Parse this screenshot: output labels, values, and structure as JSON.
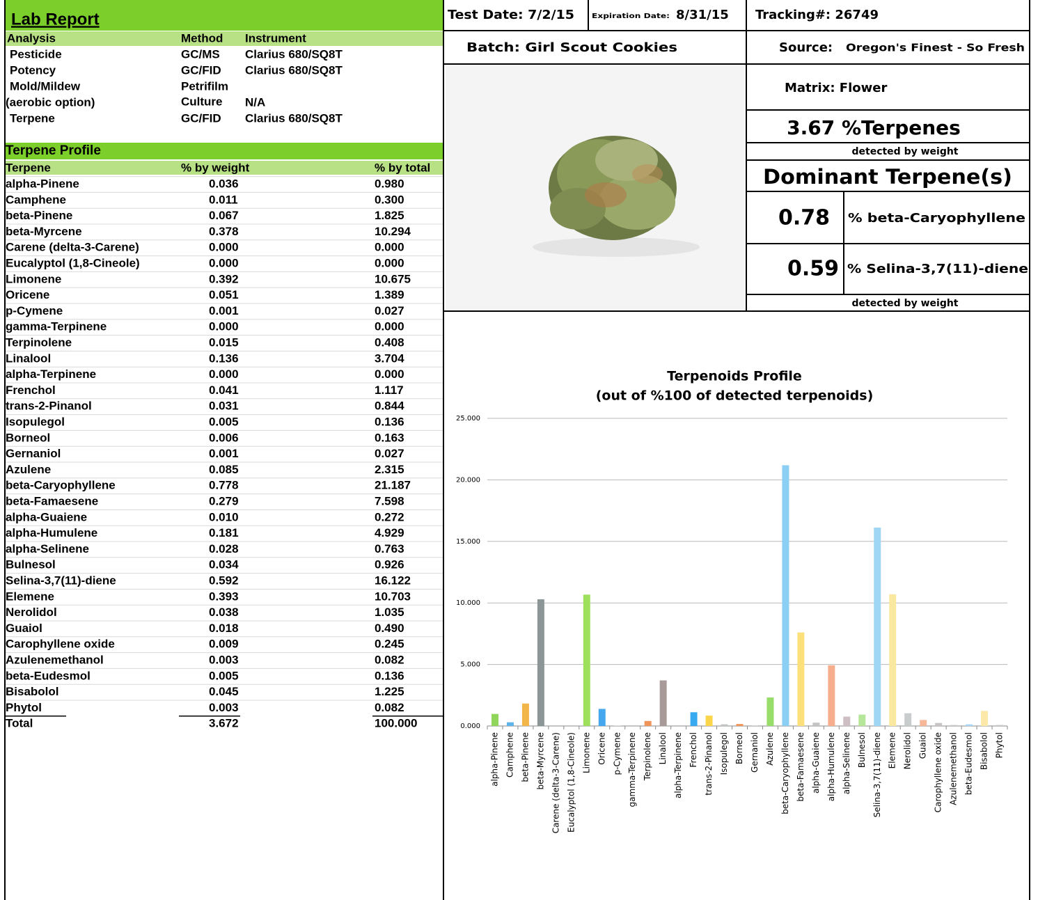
{
  "report": {
    "title": "Lab Report",
    "analysis": {
      "header": [
        "Analysis",
        "Method",
        "Instrument"
      ],
      "pesticide": [
        "Pesticide",
        "GC/MS",
        "Clarius 680/SQ8T"
      ],
      "potency": [
        "Potency",
        "GC/FID",
        "Clarius 680/SQ8T"
      ],
      "mold": {
        "name": [
          "Mold/Mildew",
          "(aerobic option)"
        ],
        "method": [
          "Petrifilm",
          "Culture"
        ],
        "instrument": "N/A"
      },
      "terpene": [
        "Terpene",
        "GC/FID",
        "Clarius 680/SQ8T"
      ]
    },
    "profile": {
      "title": "Terpene Profile",
      "header": [
        "Terpene",
        "% by weight",
        "% by total"
      ],
      "rows": [
        [
          "alpha-Pinene",
          "0.036",
          "0.980"
        ],
        [
          "Camphene",
          "0.011",
          "0.300"
        ],
        [
          "beta-Pinene",
          "0.067",
          "1.825"
        ],
        [
          "beta-Myrcene",
          "0.378",
          "10.294"
        ],
        [
          "Carene (delta-3-Carene)",
          "0.000",
          "0.000"
        ],
        [
          "Eucalyptol (1,8-Cineole)",
          "0.000",
          "0.000"
        ],
        [
          "Limonene",
          "0.392",
          "10.675"
        ],
        [
          "Oricene",
          "0.051",
          "1.389"
        ],
        [
          "p-Cymene",
          "0.001",
          "0.027"
        ],
        [
          "gamma-Terpinene",
          "0.000",
          "0.000"
        ],
        [
          "Terpinolene",
          "0.015",
          "0.408"
        ],
        [
          "Linalool",
          "0.136",
          "3.704"
        ],
        [
          "alpha-Terpinene",
          "0.000",
          "0.000"
        ],
        [
          "Frenchol",
          "0.041",
          "1.117"
        ],
        [
          "trans-2-Pinanol",
          "0.031",
          "0.844"
        ],
        [
          "Isopulegol",
          "0.005",
          "0.136"
        ],
        [
          "Borneol",
          "0.006",
          "0.163"
        ],
        [
          "Gernaniol",
          "0.001",
          "0.027"
        ],
        [
          "Azulene",
          "0.085",
          "2.315"
        ],
        [
          "beta-Caryophyllene",
          "0.778",
          "21.187"
        ],
        [
          "beta-Famaesene",
          "0.279",
          "7.598"
        ],
        [
          "alpha-Guaiene",
          "0.010",
          "0.272"
        ],
        [
          "alpha-Humulene",
          "0.181",
          "4.929"
        ],
        [
          "alpha-Selinene",
          "0.028",
          "0.763"
        ],
        [
          "Bulnesol",
          "0.034",
          "0.926"
        ],
        [
          "Selina-3,7(11)-diene",
          "0.592",
          "16.122"
        ],
        [
          "Elemene",
          "0.393",
          "10.703"
        ],
        [
          "Nerolidol",
          "0.038",
          "1.035"
        ],
        [
          "Guaiol",
          "0.018",
          "0.490"
        ],
        [
          "Carophyllene oxide",
          "0.009",
          "0.245"
        ],
        [
          "Azulenemethanol",
          "0.003",
          "0.082"
        ],
        [
          "beta-Eudesmol",
          "0.005",
          "0.136"
        ],
        [
          "Bisabolol",
          "0.045",
          "1.225"
        ],
        [
          "Phytol",
          "0.003",
          "0.082"
        ]
      ],
      "total": [
        "Total",
        "3.672",
        "100.000"
      ]
    },
    "info": {
      "test_date": "Test Date: 7/2/15",
      "expiration_label": "Expiration Date:",
      "expiration_date": "8/31/15",
      "tracking": "Tracking#: 26749",
      "batch": "Batch: Girl Scout Cookies",
      "source_label": "Source:",
      "source": "Oregon's Finest - So Fresh",
      "matrix": "Matrix: Flower",
      "terpenes_total": "3.67 %Terpenes",
      "detected_note": "detected by weight",
      "dominant_title": "Dominant Terpene(s)",
      "dominant": [
        {
          "value": "0.78",
          "name": "% beta-Caryophyllene"
        },
        {
          "value": "0.59",
          "name": "% Selina-3,7(11)-diene"
        }
      ],
      "detected_note_2": "detected by weight"
    }
  },
  "chart_data": {
    "type": "bar",
    "title": [
      "Terpenoids Profile",
      "(out of %100 of detected terpenoids)"
    ],
    "categories": [
      "alpha-Pinene",
      "Camphene",
      "beta-Pinene",
      "beta-Myrcene",
      "Carene (delta-3-Carene)",
      "Eucalyptol (1,8-Cineole)",
      "Limonene",
      "Oricene",
      "p-Cymene",
      "gamma-Terpinene",
      "Terpinolene",
      "Linalool",
      "alpha-Terpinene",
      "Frenchol",
      "trans-2-Pinanol",
      "Isopulegol",
      "Borneol",
      "Gernaniol",
      "Azulene",
      "beta-Caryophyllene",
      "beta-Famaesene",
      "alpha-Guaiene",
      "alpha-Humulene",
      "alpha-Selinene",
      "Bulnesol",
      "Selina-3,7(11)-diene",
      "Elemene",
      "Nerolidol",
      "Guaiol",
      "Carophyllene oxide",
      "Azulenemethanol",
      "beta-Eudesmol",
      "Bisabolol",
      "Phytol"
    ],
    "values": [
      0.98,
      0.3,
      1.825,
      10.294,
      0,
      0,
      10.675,
      1.389,
      0.027,
      0,
      0.408,
      3.704,
      0,
      1.117,
      0.844,
      0.136,
      0.163,
      0.027,
      2.315,
      21.187,
      7.598,
      0.272,
      4.929,
      0.763,
      0.926,
      16.122,
      10.703,
      1.035,
      0.49,
      0.245,
      0.082,
      0.136,
      1.225,
      0.082
    ],
    "colors": [
      "#8fd65a",
      "#5fb4ea",
      "#f2b54a",
      "#8c9696",
      "#b0b0b0",
      "#b0b0b0",
      "#9ee05c",
      "#45a8ee",
      "#c0c0c0",
      "#c0c0c0",
      "#f0955a",
      "#a89a98",
      "#c0c0c0",
      "#38aaf0",
      "#fcd64a",
      "#c0c4c4",
      "#f0955a",
      "#b0b0b0",
      "#98dc6a",
      "#8ccff5",
      "#fbe07c",
      "#c4c4c4",
      "#f7ae8c",
      "#cdbfc4",
      "#b5e69a",
      "#9fd6f6",
      "#fbe8a0",
      "#c8cccc",
      "#f7b89a",
      "#c8c4c4",
      "#c8c8c8",
      "#a8d8f6",
      "#fce8a8",
      "#c8c8c8"
    ],
    "ylim": [
      0,
      25
    ],
    "yticks": [
      {
        "value": 0,
        "label": "0.000"
      },
      {
        "value": 5,
        "label": "5.000"
      },
      {
        "value": 10,
        "label": "10.000"
      },
      {
        "value": 15,
        "label": "15.000"
      },
      {
        "value": 20,
        "label": "20.000"
      },
      {
        "value": 25,
        "label": "25.000"
      }
    ],
    "grid": true
  }
}
